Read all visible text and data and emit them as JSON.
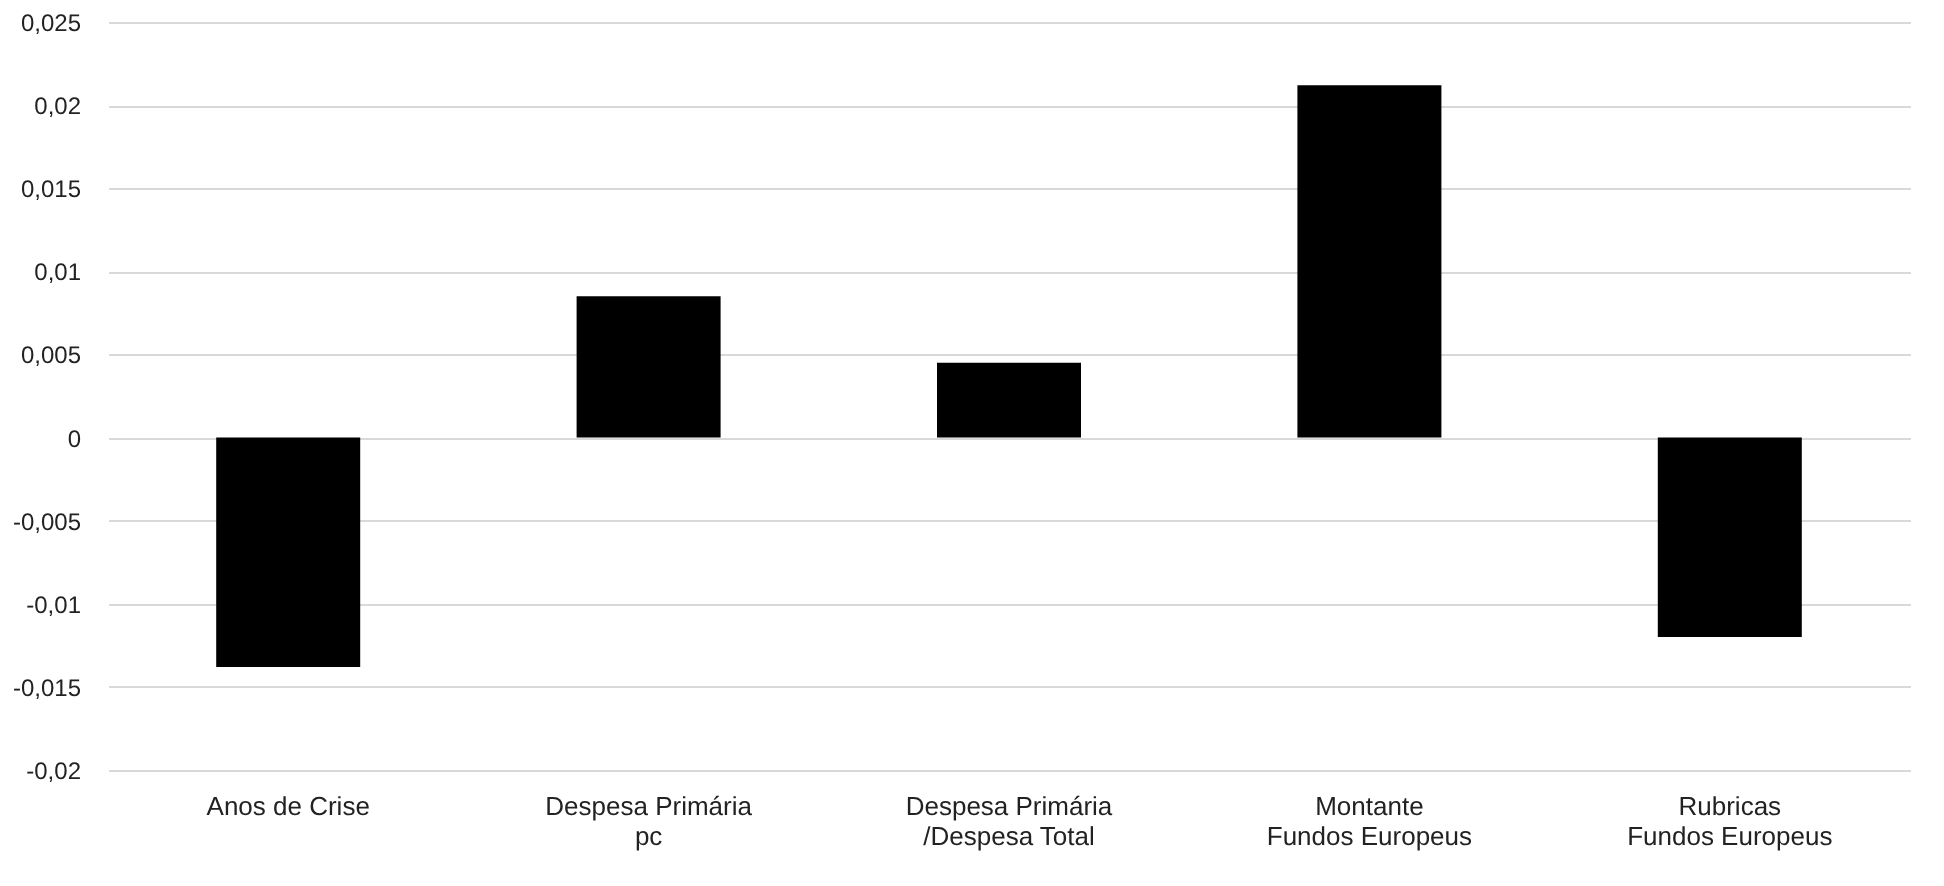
{
  "chart_data": {
    "type": "bar",
    "categories": [
      "Anos de Crise",
      "Despesa Primária\npc",
      "Despesa Primária\n/Despesa Total",
      "Montante\nFundos Europeus",
      "Rubricas\nFundos Europeus"
    ],
    "values": [
      -0.0138,
      0.0085,
      0.0045,
      0.0212,
      -0.012
    ],
    "colors": [
      "#000000",
      "#000000",
      "#000000",
      "#000000",
      "#000000"
    ],
    "ylim": [
      -0.02,
      0.025
    ],
    "yticks": [
      {
        "value": -0.02,
        "label": "-0,02"
      },
      {
        "value": -0.015,
        "label": "-0,015"
      },
      {
        "value": -0.01,
        "label": "-0,01"
      },
      {
        "value": -0.005,
        "label": "-0,005"
      },
      0,
      {
        "value": 0.005,
        "label": "0,005"
      },
      {
        "value": 0.01,
        "label": "0,01"
      },
      {
        "value": 0.015,
        "label": "0,015"
      },
      {
        "value": 0.02,
        "label": "0,02"
      },
      {
        "value": 0.025,
        "label": "0,025"
      }
    ],
    "grid": "y"
  }
}
